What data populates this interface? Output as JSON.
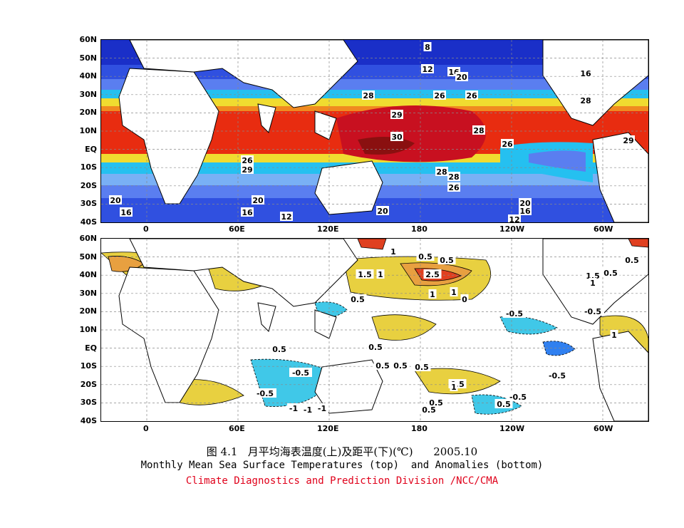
{
  "figure": {
    "caption_cn": "图 4.1   月平均海表温度(上)及距平(下)(℃)      2005.10",
    "caption_en": "Monthly Mean Sea Surface Temperatures (top)  and Anomalies (bottom)",
    "credit": "Climate Diagnostics and Prediction Division /NCC/CMA",
    "credit_color": "#e0001a"
  },
  "axes": {
    "lat_labels": [
      "60N",
      "50N",
      "40N",
      "30N",
      "20N",
      "10N",
      "EQ",
      "10S",
      "20S",
      "30S",
      "40S"
    ],
    "lon_labels": [
      "0",
      "60E",
      "120E",
      "180",
      "120W",
      "60W"
    ]
  },
  "top_panel": {
    "contour_labels": [
      "8",
      "12",
      "16",
      "20",
      "16",
      "26",
      "28",
      "26",
      "28",
      "29",
      "28",
      "30",
      "26",
      "29",
      "28",
      "26",
      "29",
      "28",
      "26",
      "20",
      "20",
      "16",
      "16",
      "12",
      "20",
      "20",
      "16",
      "12"
    ],
    "palette": [
      "#1a2fc8",
      "#3050e0",
      "#5a7ef0",
      "#79b0f5",
      "#25c0f0",
      "#f0dc30",
      "#f08a20",
      "#e82c10",
      "#c81020",
      "#8a1010"
    ]
  },
  "bottom_panel": {
    "contour_labels": [
      "1",
      "0.5",
      "0.5",
      "2.5",
      "1.5",
      "1",
      "0.5",
      "1",
      "1",
      "0",
      "-0.5",
      "-0.5",
      "1.5",
      "1",
      "0.5",
      "1",
      "0.5",
      "0.5",
      "0.5",
      "-0.5",
      "0.5",
      "-0.5",
      "0.5",
      "-1",
      "0.5",
      "0.5",
      "1",
      "-0.5",
      "-0.5",
      "-0.5",
      "-1",
      "-1",
      "0.5",
      "0.5",
      "0.5"
    ],
    "palette": {
      "pos_weak": "#e8d040",
      "pos_mod": "#e8a040",
      "pos_strong": "#e04020",
      "pos_max": "#b01010",
      "neg_weak": "#40c8e8",
      "neg_mod": "#3080f0",
      "neg_strong": "#4030c0"
    }
  }
}
